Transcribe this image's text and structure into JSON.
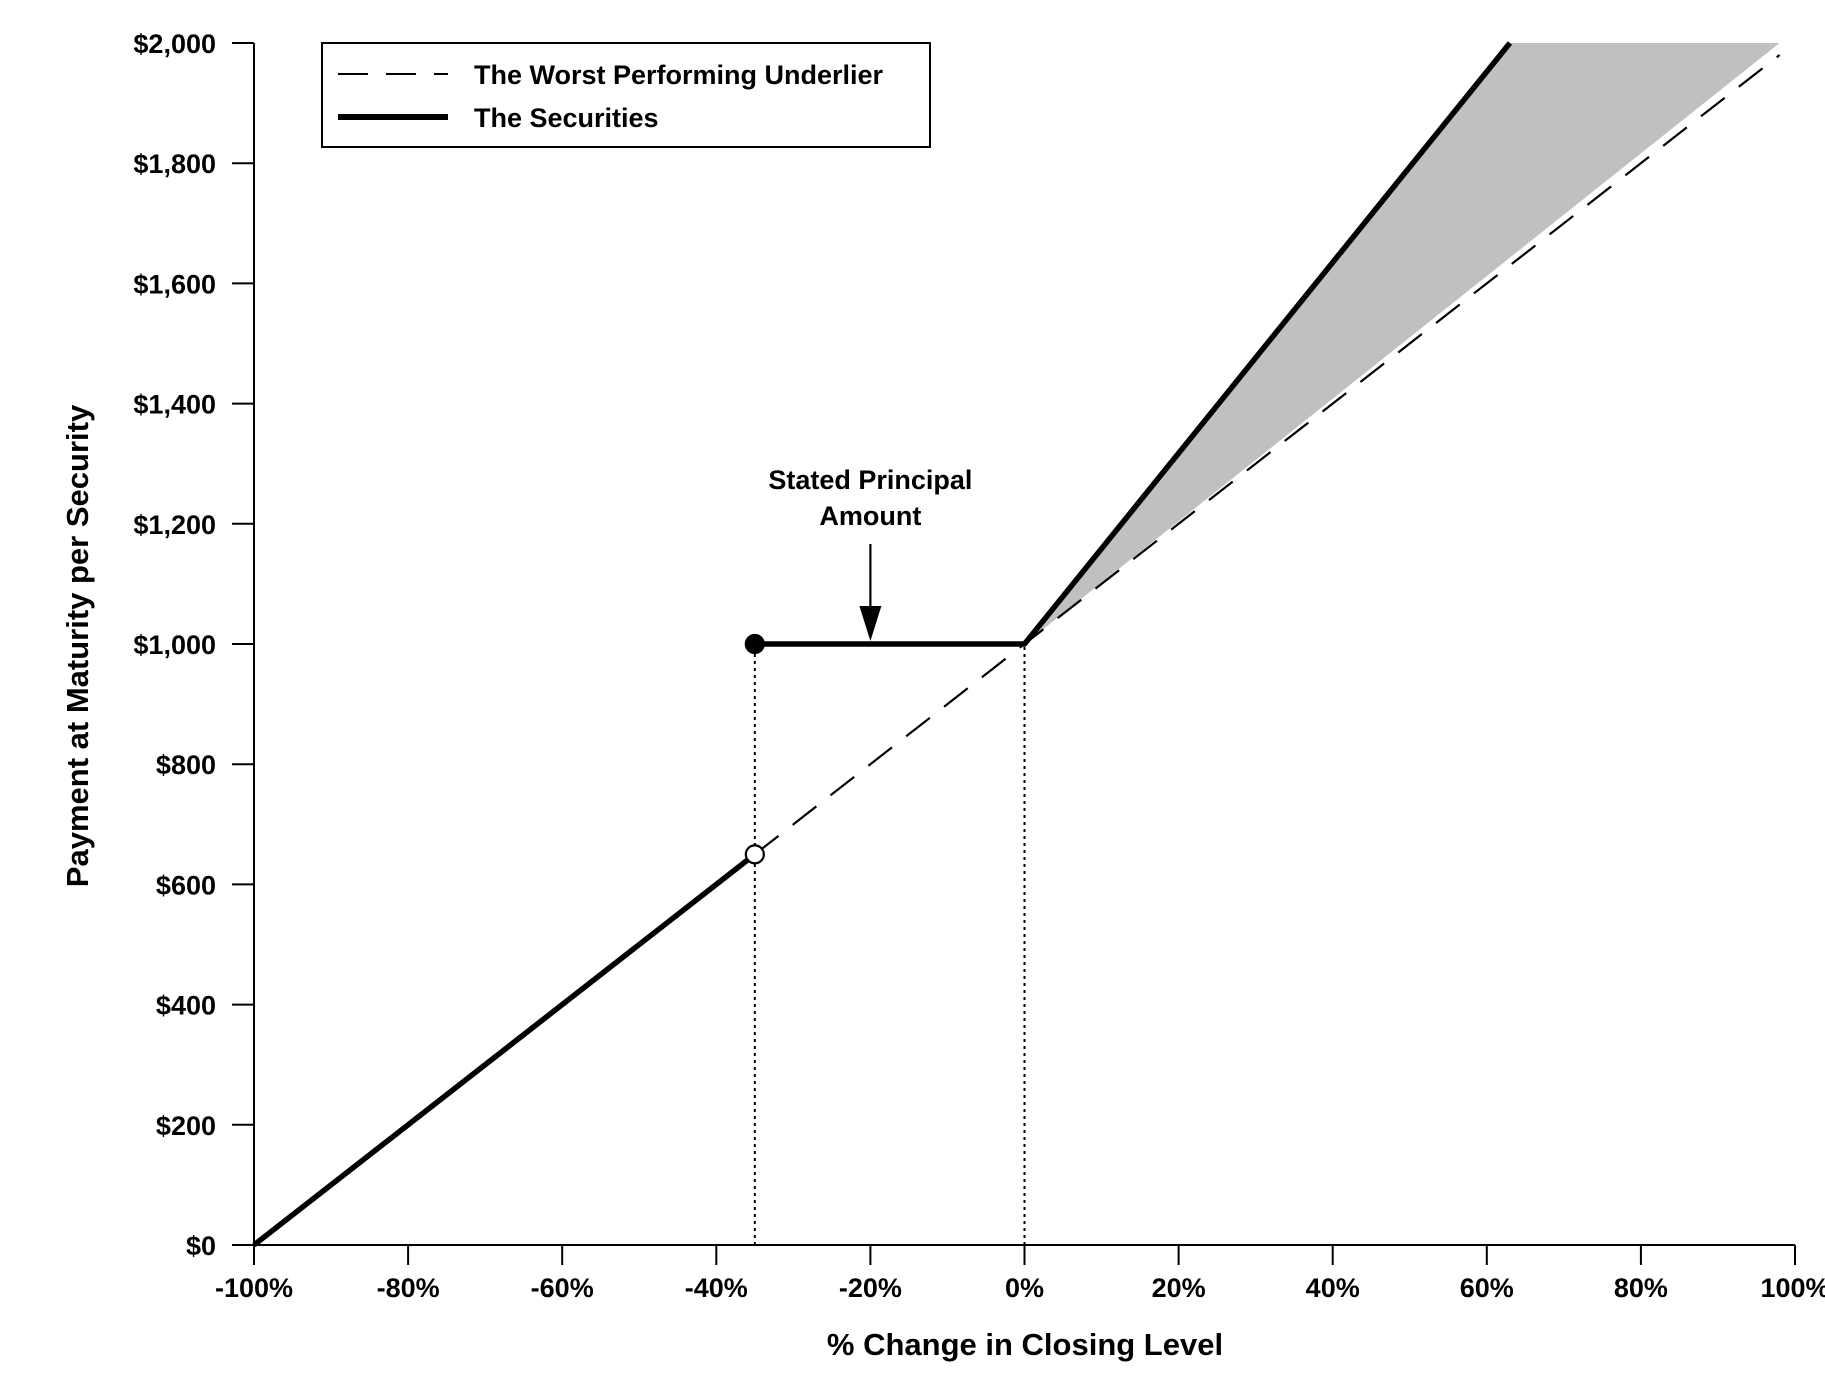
{
  "chart_data": {
    "type": "line",
    "xlabel": "% Change in Closing Level",
    "ylabel": "Payment at Maturity per Security",
    "xlim": [
      -100,
      100
    ],
    "ylim": [
      0,
      2000
    ],
    "x_ticks": [
      -100,
      -80,
      -60,
      -40,
      -20,
      0,
      20,
      40,
      60,
      80,
      100
    ],
    "x_tick_labels": [
      "-100%",
      "-80%",
      "-60%",
      "-40%",
      "-20%",
      "0%",
      "20%",
      "40%",
      "60%",
      "80%",
      "100%"
    ],
    "y_ticks": [
      0,
      200,
      400,
      600,
      800,
      1000,
      1200,
      1400,
      1600,
      1800,
      2000
    ],
    "y_tick_labels": [
      "$0",
      "$200",
      "$400",
      "$600",
      "$800",
      "$1,000",
      "$1,200",
      "$1,400",
      "$1,600",
      "$1,800",
      "$2,000"
    ],
    "grid": false,
    "legend_position": "top-left",
    "series": [
      {
        "name": "The Worst Performing Underlier",
        "style": "dashed",
        "color": "#000000",
        "points": [
          [
            -35,
            650
          ],
          [
            0,
            1000
          ],
          [
            98,
            1980
          ]
        ]
      },
      {
        "name": "The Securities",
        "style": "solid-thick",
        "color": "#000000",
        "segments": [
          [
            [
              -100,
              0
            ],
            [
              -35,
              650
            ]
          ],
          [
            [
              -35,
              1000
            ],
            [
              0,
              1000
            ],
            [
              63,
              2000
            ]
          ]
        ]
      }
    ],
    "shaded_region": {
      "color": "#c0c0c0",
      "points": [
        [
          0,
          1000
        ],
        [
          63,
          2000
        ],
        [
          98,
          2000
        ],
        [
          0,
          1000
        ]
      ]
    },
    "markers": [
      {
        "x": -35,
        "y": 1000,
        "style": "filled"
      },
      {
        "x": -35,
        "y": 650,
        "style": "open"
      }
    ],
    "reference_lines": [
      {
        "x": -35,
        "y_from": 0,
        "y_to": 1000,
        "style": "dotted"
      },
      {
        "x": 0,
        "y_from": 0,
        "y_to": 1000,
        "style": "dotted"
      }
    ],
    "annotations": [
      {
        "text_lines": [
          "Stated Principal",
          "Amount"
        ],
        "x": -20,
        "y": 1000,
        "arrow": true
      }
    ]
  }
}
